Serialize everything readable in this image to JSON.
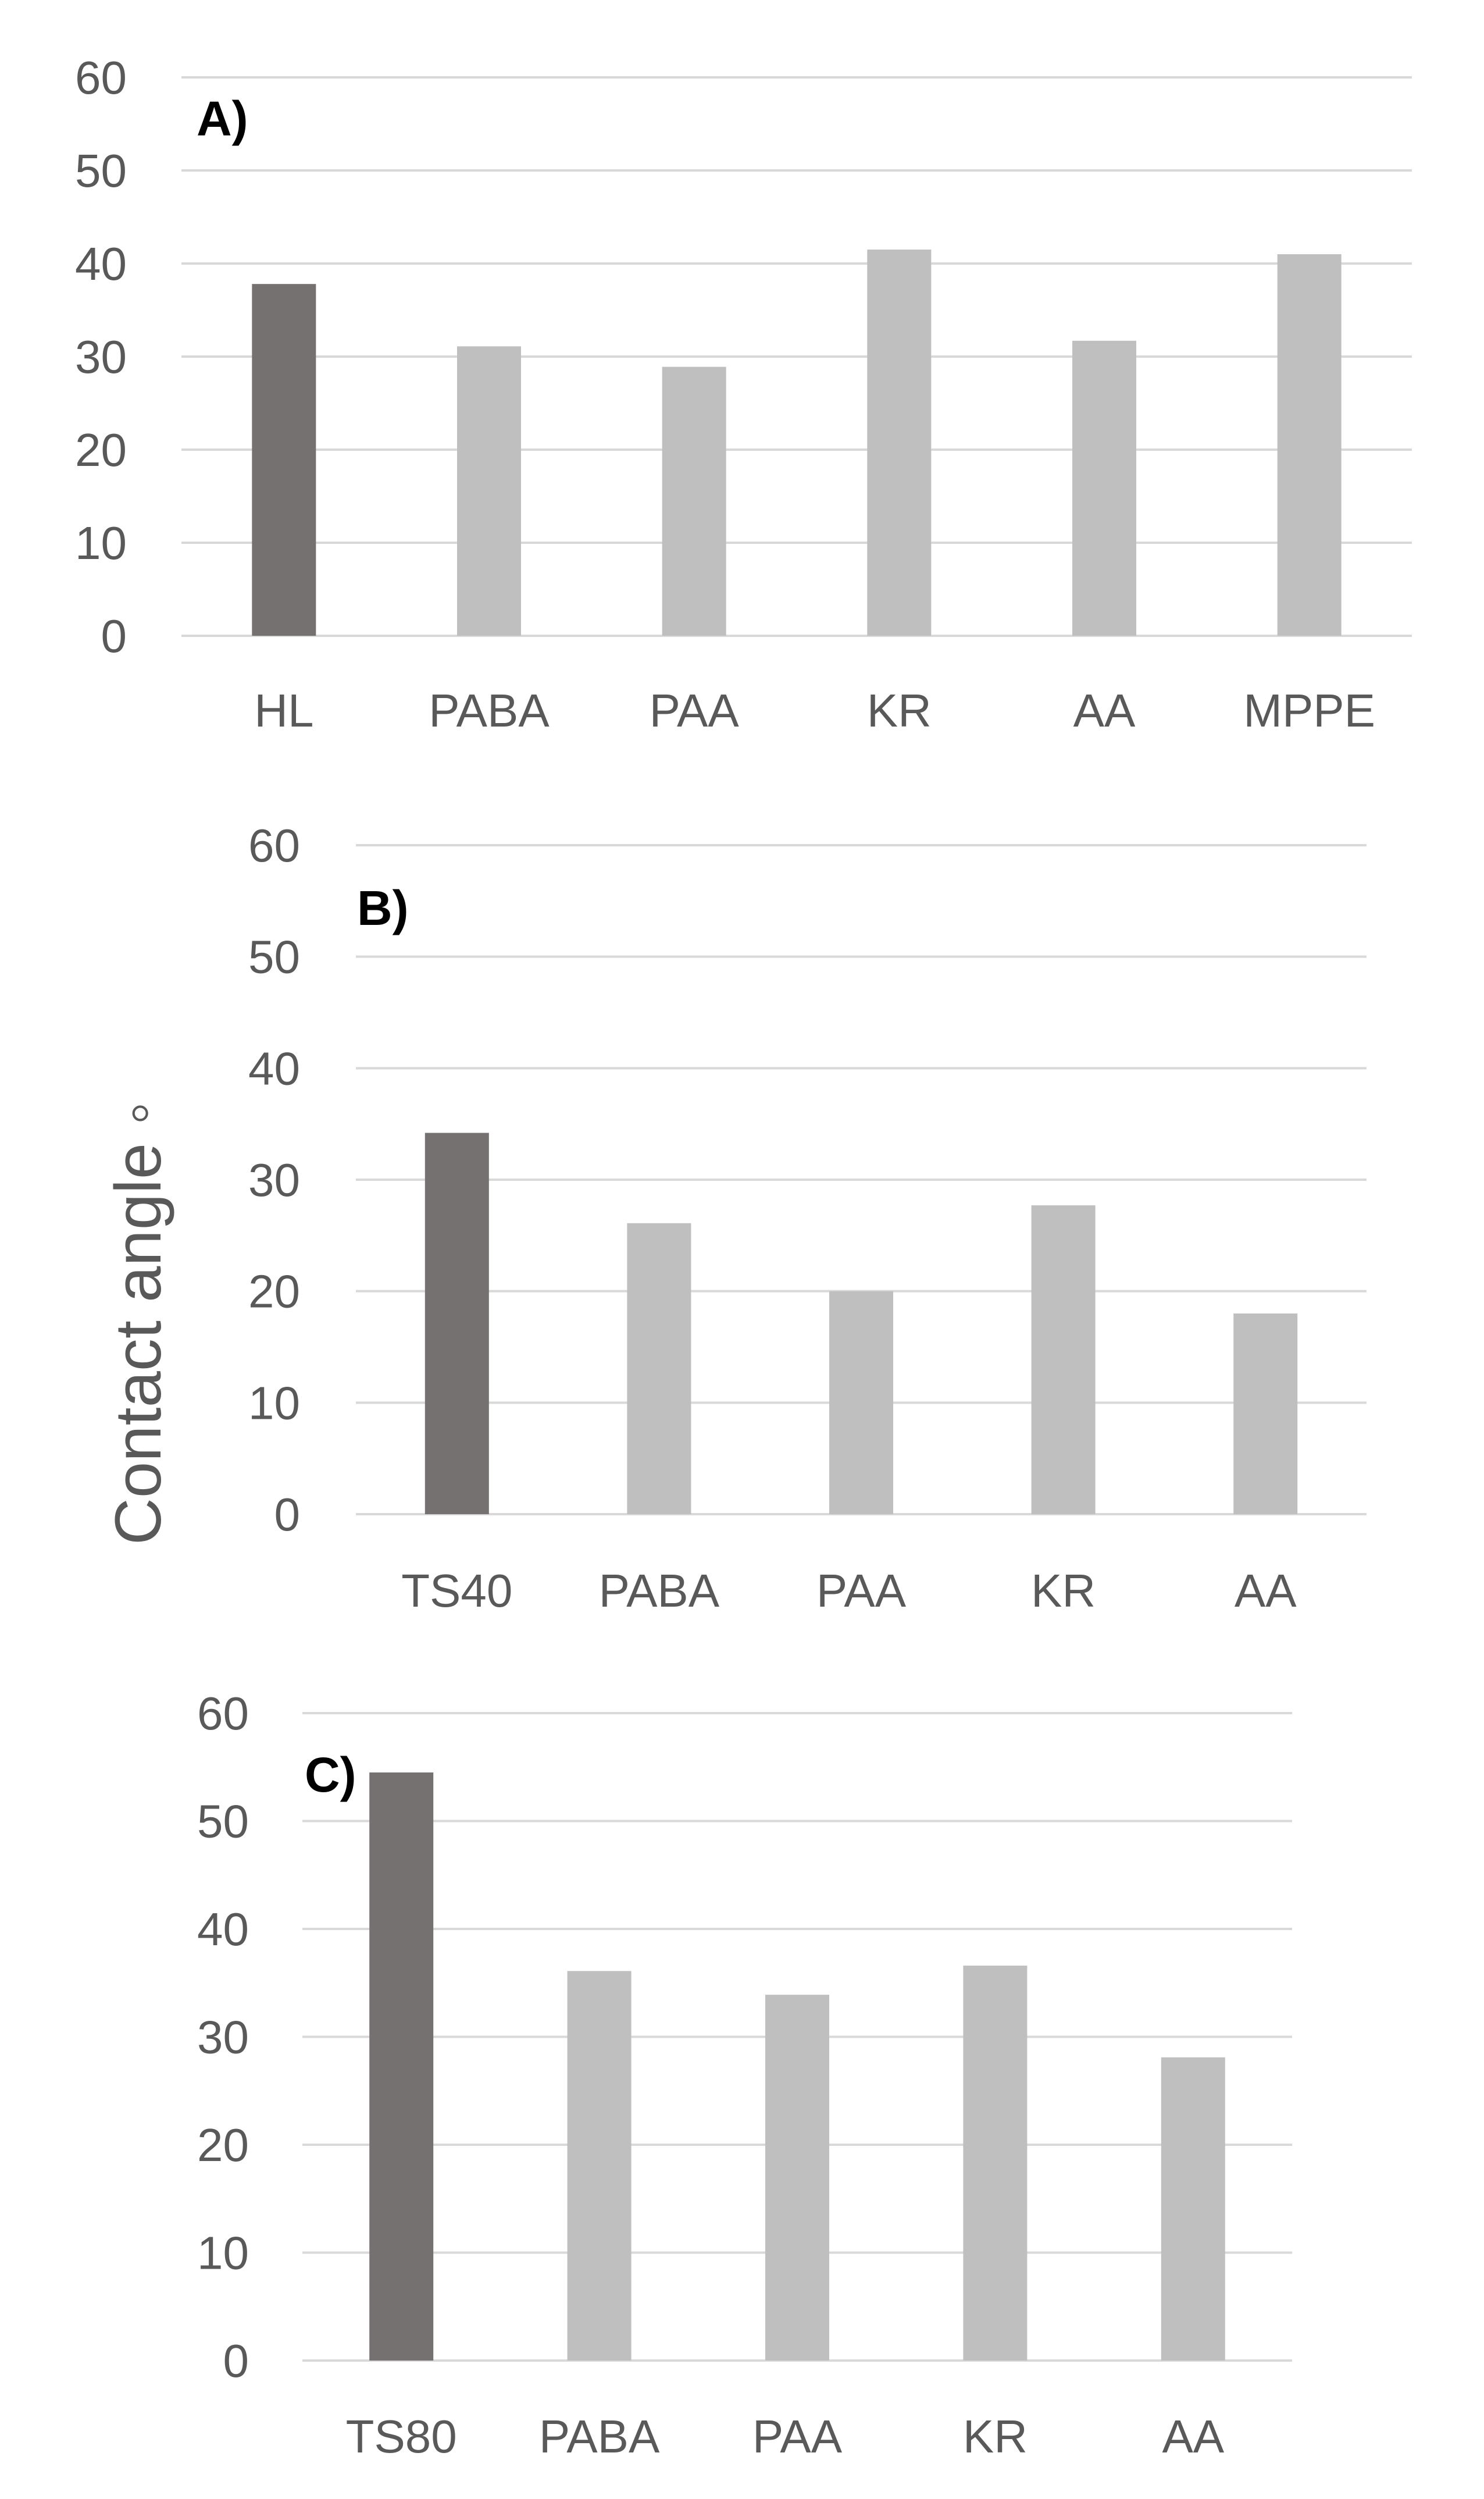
{
  "y_axis_title": "Contact angle ◦",
  "colors": {
    "control": "#767171",
    "treatment": "#bfbfbf",
    "gridline": "#d9d9d9",
    "text": "#595959"
  },
  "chart_data": [
    {
      "type": "bar",
      "panel_label": "A)",
      "categories": [
        "HL",
        "PABA",
        "PAA",
        "KR",
        "AA",
        "MPPE"
      ],
      "values": [
        37.8,
        31.1,
        28.9,
        41.5,
        31.7,
        41.0
      ],
      "ylim": [
        0,
        60
      ],
      "yticks": [
        0,
        10,
        20,
        30,
        40,
        50,
        60
      ],
      "ylabel": "Contact angle ◦",
      "grid": true
    },
    {
      "type": "bar",
      "panel_label": "B)",
      "categories": [
        "TS40",
        "PABA",
        "PAA",
        "KR",
        "AA"
      ],
      "values": [
        34.2,
        26.1,
        20.0,
        27.7,
        18.0
      ],
      "ylim": [
        0,
        60
      ],
      "yticks": [
        0,
        10,
        20,
        30,
        40,
        50,
        60
      ],
      "ylabel": "Contact angle ◦",
      "grid": true
    },
    {
      "type": "bar",
      "panel_label": "C)",
      "categories": [
        "TS80",
        "PABA",
        "PAA",
        "KR",
        "AA"
      ],
      "values": [
        54.5,
        36.1,
        33.9,
        36.6,
        28.1
      ],
      "ylim": [
        0,
        60
      ],
      "yticks": [
        0,
        10,
        20,
        30,
        40,
        50,
        60
      ],
      "ylabel": "Contact angle ◦",
      "grid": true
    }
  ]
}
